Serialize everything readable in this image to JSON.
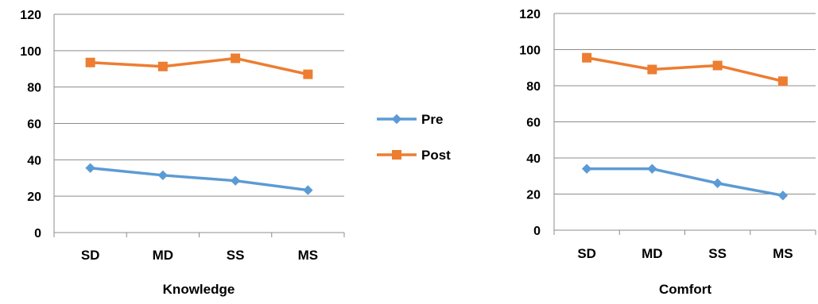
{
  "chart_data": [
    {
      "type": "line",
      "xlabel": "Knowledge",
      "ylabel": "",
      "categories": [
        "SD",
        "MD",
        "SS",
        "MS"
      ],
      "ylim": [
        0,
        120
      ],
      "yticks": [
        0,
        20,
        40,
        60,
        80,
        100,
        120
      ],
      "grid": true,
      "series": [
        {
          "name": "Pre",
          "values": [
            35.5,
            31.5,
            28.5,
            23.3
          ],
          "color": "#5B9BD5",
          "marker": "diamond"
        },
        {
          "name": "Post",
          "values": [
            93.5,
            91.3,
            95.8,
            87.0
          ],
          "color": "#ED7D31",
          "marker": "square"
        }
      ]
    },
    {
      "type": "line",
      "xlabel": "Comfort",
      "ylabel": "",
      "categories": [
        "SD",
        "MD",
        "SS",
        "MS"
      ],
      "ylim": [
        0,
        120
      ],
      "yticks": [
        0,
        20,
        40,
        60,
        80,
        100,
        120
      ],
      "grid": true,
      "series": [
        {
          "name": "Pre",
          "values": [
            34.0,
            34.0,
            26.0,
            19.2
          ],
          "color": "#5B9BD5",
          "marker": "diamond"
        },
        {
          "name": "Post",
          "values": [
            95.5,
            89.0,
            91.2,
            82.5
          ],
          "color": "#ED7D31",
          "marker": "square"
        }
      ]
    }
  ],
  "legend": {
    "placement": "between-charts",
    "items": [
      {
        "label": "Pre",
        "color": "#5B9BD5",
        "marker": "diamond"
      },
      {
        "label": "Post",
        "color": "#ED7D31",
        "marker": "square"
      }
    ]
  }
}
